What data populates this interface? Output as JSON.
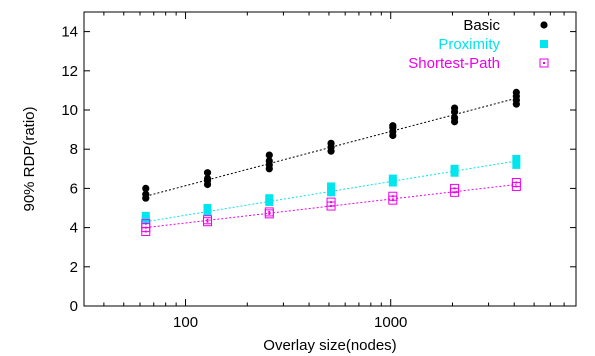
{
  "chart_data": {
    "type": "scatter",
    "xlabel": "Overlay size(nodes)",
    "ylabel": "90% RDP(ratio)",
    "xscale": "log",
    "xlim": [
      32,
      8000
    ],
    "ylim": [
      0,
      15
    ],
    "x_ticks": [
      100,
      1000
    ],
    "x_tick_labels": [
      "100",
      "1000"
    ],
    "y_ticks": [
      0,
      2,
      4,
      6,
      8,
      10,
      12,
      14
    ],
    "y_tick_labels": [
      "0",
      "2",
      "4",
      "6",
      "8",
      "10",
      "12",
      "14"
    ],
    "grid": false,
    "legend_position": "top-right",
    "series": [
      {
        "name": "Basic",
        "color": "#000000",
        "marker": "filled-circle",
        "points": [
          {
            "x": 64,
            "y": 5.5
          },
          {
            "x": 64,
            "y": 5.7
          },
          {
            "x": 64,
            "y": 6.0
          },
          {
            "x": 128,
            "y": 6.2
          },
          {
            "x": 128,
            "y": 6.4
          },
          {
            "x": 128,
            "y": 6.5
          },
          {
            "x": 128,
            "y": 6.8
          },
          {
            "x": 256,
            "y": 7.0
          },
          {
            "x": 256,
            "y": 7.2
          },
          {
            "x": 256,
            "y": 7.4
          },
          {
            "x": 256,
            "y": 7.7
          },
          {
            "x": 512,
            "y": 7.9
          },
          {
            "x": 512,
            "y": 8.1
          },
          {
            "x": 512,
            "y": 8.3
          },
          {
            "x": 1024,
            "y": 8.7
          },
          {
            "x": 1024,
            "y": 8.9
          },
          {
            "x": 1024,
            "y": 9.1
          },
          {
            "x": 1024,
            "y": 9.2
          },
          {
            "x": 2048,
            "y": 9.4
          },
          {
            "x": 2048,
            "y": 9.6
          },
          {
            "x": 2048,
            "y": 9.9
          },
          {
            "x": 2048,
            "y": 10.1
          },
          {
            "x": 4096,
            "y": 10.3
          },
          {
            "x": 4096,
            "y": 10.5
          },
          {
            "x": 4096,
            "y": 10.7
          },
          {
            "x": 4096,
            "y": 10.9
          }
        ],
        "trend": [
          {
            "x": 64,
            "y": 5.6
          },
          {
            "x": 4096,
            "y": 10.6
          }
        ]
      },
      {
        "name": "Proximity",
        "color": "#00e5ee",
        "marker": "filled-square",
        "points": [
          {
            "x": 64,
            "y": 4.4
          },
          {
            "x": 64,
            "y": 4.6
          },
          {
            "x": 128,
            "y": 4.8
          },
          {
            "x": 128,
            "y": 5.0
          },
          {
            "x": 256,
            "y": 5.3
          },
          {
            "x": 256,
            "y": 5.5
          },
          {
            "x": 512,
            "y": 5.8
          },
          {
            "x": 512,
            "y": 6.1
          },
          {
            "x": 1024,
            "y": 6.3
          },
          {
            "x": 1024,
            "y": 6.5
          },
          {
            "x": 2048,
            "y": 6.8
          },
          {
            "x": 2048,
            "y": 7.0
          },
          {
            "x": 4096,
            "y": 7.2
          },
          {
            "x": 4096,
            "y": 7.5
          }
        ],
        "trend": [
          {
            "x": 64,
            "y": 4.3
          },
          {
            "x": 4096,
            "y": 7.4
          }
        ]
      },
      {
        "name": "Shortest-Path",
        "color": "#ee00ee",
        "marker": "open-square-dot",
        "points": [
          {
            "x": 64,
            "y": 3.8
          },
          {
            "x": 64,
            "y": 4.0
          },
          {
            "x": 64,
            "y": 4.2
          },
          {
            "x": 128,
            "y": 4.3
          },
          {
            "x": 128,
            "y": 4.4
          },
          {
            "x": 256,
            "y": 4.7
          },
          {
            "x": 256,
            "y": 4.8
          },
          {
            "x": 512,
            "y": 5.1
          },
          {
            "x": 512,
            "y": 5.3
          },
          {
            "x": 1024,
            "y": 5.4
          },
          {
            "x": 1024,
            "y": 5.6
          },
          {
            "x": 2048,
            "y": 5.8
          },
          {
            "x": 2048,
            "y": 6.0
          },
          {
            "x": 4096,
            "y": 6.1
          },
          {
            "x": 4096,
            "y": 6.3
          }
        ],
        "trend": [
          {
            "x": 64,
            "y": 4.0
          },
          {
            "x": 4096,
            "y": 6.2
          }
        ]
      }
    ]
  }
}
